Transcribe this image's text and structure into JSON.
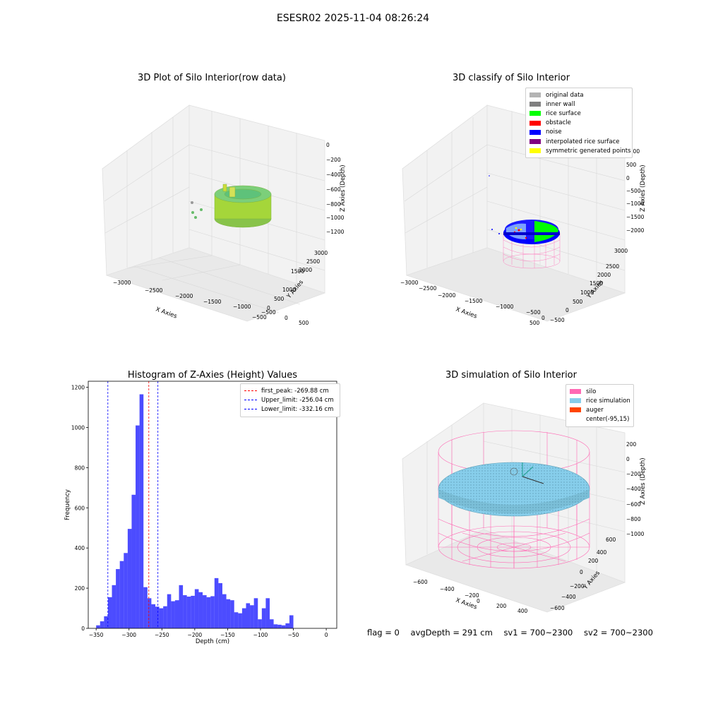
{
  "suptitle": "ESESR02 2025-11-04 08:26:24",
  "panels": {
    "raw": {
      "title": "3D Plot of Silo Interior(row data)",
      "xlabel": "X Axies",
      "ylabel": "Y Axies",
      "zlabel": "Z Axies (Depth)",
      "xticks": [
        "−3000",
        "−2500",
        "−2000",
        "−1500",
        "−1000",
        "−500",
        "0",
        "500"
      ],
      "yticks": [
        "−500",
        "0",
        "500",
        "1000",
        "1500",
        "2000",
        "2500",
        "3000"
      ],
      "zticks": [
        "0",
        "−200",
        "−400",
        "−600",
        "−800",
        "−1000",
        "−1200"
      ]
    },
    "classify": {
      "title": "3D classify of Silo Interior",
      "xlabel": "X Axies",
      "ylabel": "Y Axies",
      "zlabel": "Z Axies (Depth)",
      "xticks": [
        "−3000",
        "−2500",
        "−2000",
        "−1500",
        "−1000",
        "−500",
        "0",
        "500"
      ],
      "yticks": [
        "−500",
        "0",
        "500",
        "1000",
        "1500",
        "2000",
        "2500",
        "3000"
      ],
      "zticks": [
        "1000",
        "500",
        "0",
        "−500",
        "−1000",
        "−1500",
        "−2000"
      ],
      "legend": [
        {
          "label": "original data",
          "color": "#b3b3b3"
        },
        {
          "label": "inner wall",
          "color": "#808080"
        },
        {
          "label": "rice surface",
          "color": "#00ff00"
        },
        {
          "label": "obstacle",
          "color": "#ff0000"
        },
        {
          "label": "noise",
          "color": "#0000ff"
        },
        {
          "label": "interpolated rice surface",
          "color": "#800080"
        },
        {
          "label": "symmetric generated points",
          "color": "#ffff00"
        }
      ]
    },
    "simulation": {
      "title": "3D simulation of Silo Interior",
      "xlabel": "X Axies",
      "ylabel": "Y Axies",
      "zlabel": "Z Axies (Depth)",
      "xticks": [
        "−600",
        "−400",
        "−200",
        "0",
        "200",
        "400"
      ],
      "yticks": [
        "−600",
        "−400",
        "−200",
        "0",
        "200",
        "400",
        "600"
      ],
      "zticks": [
        "200",
        "0",
        "−200",
        "−400",
        "−600",
        "−800",
        "−1000"
      ],
      "legend": [
        {
          "label": "silo",
          "color": "#ff69b4"
        },
        {
          "label": "rice simulation",
          "color": "#87ceeb"
        },
        {
          "label": "auger",
          "color": "#ff4500"
        },
        {
          "label": "center(-95,15)",
          "color": ""
        }
      ]
    }
  },
  "status": {
    "flag": "flag = 0",
    "avg_depth": "avgDepth = 291 cm",
    "sv1": "sv1 = 700~2300",
    "sv2": "sv2 = 700~2300"
  },
  "chart_data": [
    {
      "type": "bar",
      "title": "Histogram of Z-Axies (Height) Values",
      "xlabel": "Depth (cm)",
      "ylabel": "Frequency",
      "xlim": [
        -362,
        16
      ],
      "ylim": [
        0,
        1230
      ],
      "bin_width": 6,
      "xticks": [
        -350,
        -300,
        -250,
        -200,
        -150,
        -100,
        -50,
        0
      ],
      "yticks": [
        0,
        200,
        400,
        600,
        800,
        1000,
        1200
      ],
      "bars": {
        "color": "#0000ff",
        "x_start": [
          -350,
          -344,
          -338,
          -332,
          -326,
          -320,
          -314,
          -308,
          -302,
          -296,
          -290,
          -284,
          -278,
          -272,
          -266,
          -260,
          -254,
          -248,
          -242,
          -236,
          -230,
          -224,
          -218,
          -212,
          -206,
          -200,
          -194,
          -188,
          -182,
          -176,
          -170,
          -164,
          -158,
          -152,
          -146,
          -140,
          -134,
          -128,
          -122,
          -116,
          -110,
          -104,
          -98,
          -92,
          -86,
          -80,
          -74,
          -68,
          -62,
          -56,
          -50,
          -44,
          -38,
          -32,
          -26,
          -20,
          -14,
          -8,
          -2
        ],
        "values": [
          15,
          35,
          60,
          155,
          215,
          295,
          335,
          375,
          495,
          665,
          1010,
          1165,
          205,
          150,
          120,
          108,
          100,
          110,
          170,
          135,
          140,
          215,
          165,
          158,
          162,
          195,
          180,
          165,
          155,
          160,
          250,
          225,
          170,
          145,
          140,
          80,
          75,
          100,
          125,
          115,
          150,
          45,
          100,
          150,
          45,
          20,
          18,
          15,
          25,
          65,
          0,
          0,
          0,
          0,
          0,
          0,
          0,
          0,
          0
        ]
      },
      "series": [
        {
          "name": "first_peak: -269.88 cm",
          "x": -269.88,
          "color": "#ff0000",
          "style": "dashed"
        },
        {
          "name": "Upper_limit: -256.04 cm",
          "x": -256.04,
          "color": "#0000ff",
          "style": "dashed"
        },
        {
          "name": "Lower_limit: -332.16 cm",
          "x": -332.16,
          "color": "#0000ff",
          "style": "dashed"
        }
      ],
      "legend_position": "upper right",
      "grid": false
    }
  ]
}
